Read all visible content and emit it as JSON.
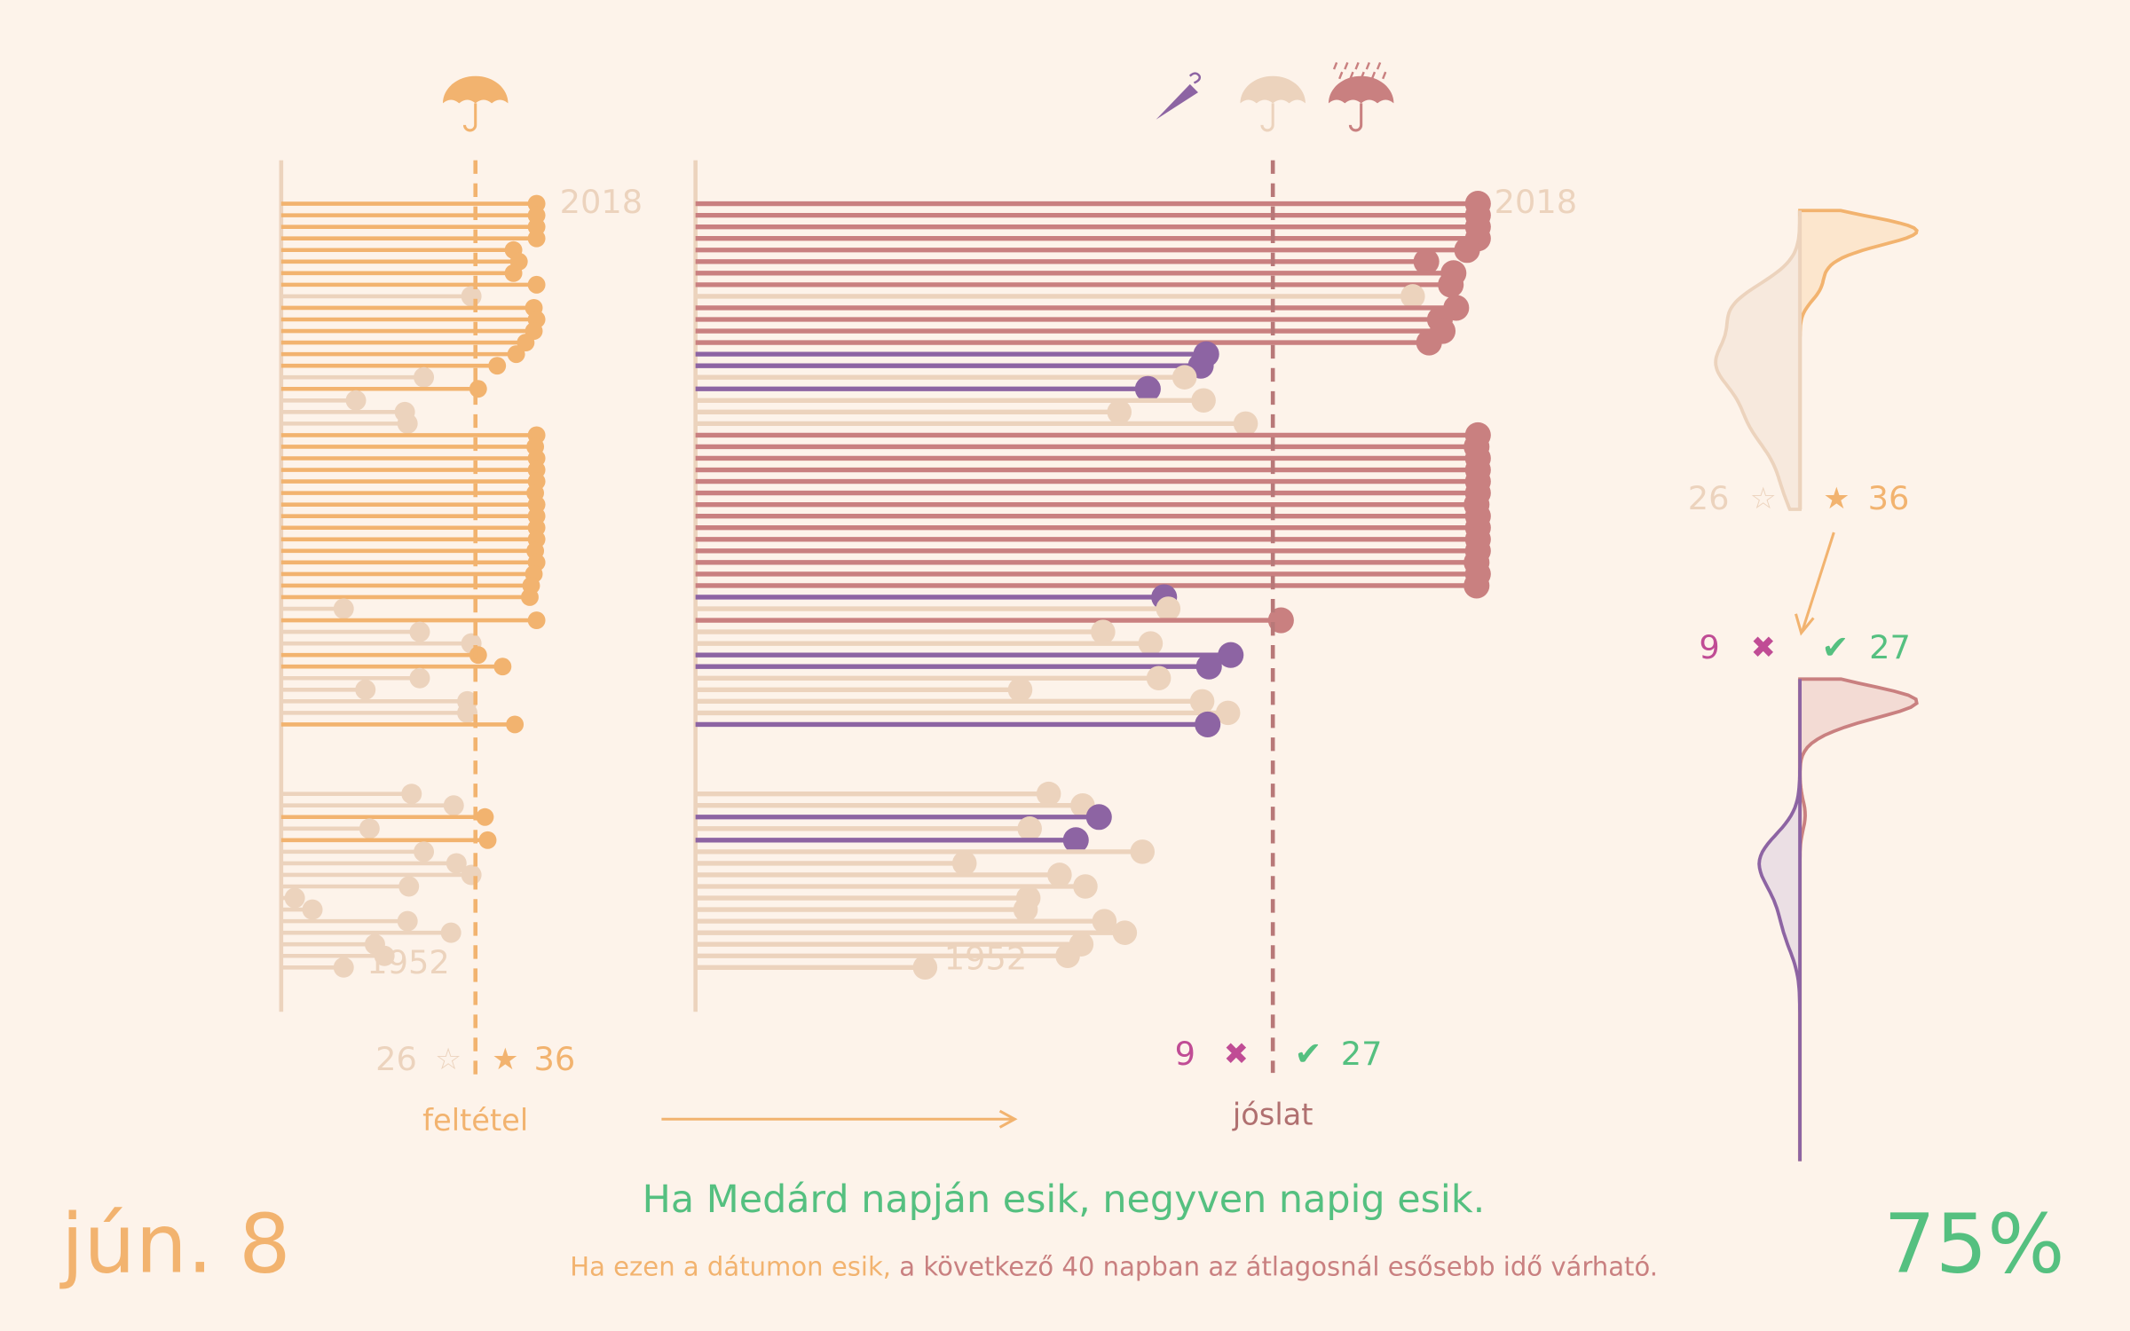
{
  "date": "jún. 8",
  "headline": "Ha Medárd napján esik, negyven napig esik.",
  "subtitle": {
    "condition": "Ha ezen a dátumon esik,",
    "prediction": "a következő 40 napban az átlagosnál esősebb  idő várható."
  },
  "score": "75%",
  "chart_data": [
    {
      "type": "lollipop",
      "label": "feltétel",
      "year_labels": [
        "2018",
        "1952"
      ],
      "xlim": [
        0,
        200
      ],
      "threshold": 143,
      "colors": {
        "above": "#f2b36f",
        "below": "#ecd3bd"
      },
      "values": [
        188,
        188,
        188,
        188,
        171,
        175,
        171,
        188,
        140,
        186,
        188,
        186,
        180,
        173,
        159,
        105,
        145,
        55,
        91,
        93,
        188,
        187,
        188,
        188,
        188,
        187,
        188,
        188,
        188,
        188,
        187,
        188,
        186,
        184,
        183,
        46,
        188,
        102,
        140,
        145,
        163,
        102,
        62,
        137,
        137,
        172,
        null,
        null,
        null,
        null,
        null,
        96,
        127,
        150,
        65,
        152,
        105,
        129,
        140,
        94,
        10,
        23,
        93,
        125,
        69,
        76,
        46
      ],
      "count_below": 26,
      "below_symbol": "☆",
      "above_symbol": "★",
      "count_above": 36
    },
    {
      "type": "lollipop",
      "label": "jóslat",
      "year_labels": [
        "2018",
        "1952"
      ],
      "xlim": [
        0,
        600
      ],
      "threshold": 425,
      "colors": {
        "hit": "#c98080",
        "miss": "#8d64a3",
        "off": "#ecd3bd"
      },
      "values": [
        576,
        576,
        576,
        576,
        568,
        538,
        558,
        556,
        528,
        560,
        548,
        550,
        540,
        376,
        372,
        360,
        333,
        374,
        312,
        405,
        576,
        575,
        576,
        576,
        576,
        576,
        575,
        576,
        576,
        576,
        576,
        575,
        576,
        575,
        345,
        348,
        431,
        300,
        335,
        394,
        378,
        341,
        239,
        373,
        392,
        377,
        null,
        null,
        null,
        null,
        null,
        260,
        285,
        297,
        246,
        280,
        329,
        198,
        268,
        287,
        245,
        243,
        301,
        316,
        284,
        274,
        169
      ],
      "count_miss": 9,
      "miss_symbol": "✖",
      "hit_symbol": "✔",
      "count_hit": 27
    },
    {
      "type": "density",
      "top": {
        "count_below": 26,
        "below_symbol": "☆",
        "above_symbol": "★",
        "count_above": 36
      },
      "bottom": {
        "count_miss": 9,
        "miss_symbol": "✖",
        "hit_symbol": "✔",
        "count_hit": 27
      }
    }
  ]
}
